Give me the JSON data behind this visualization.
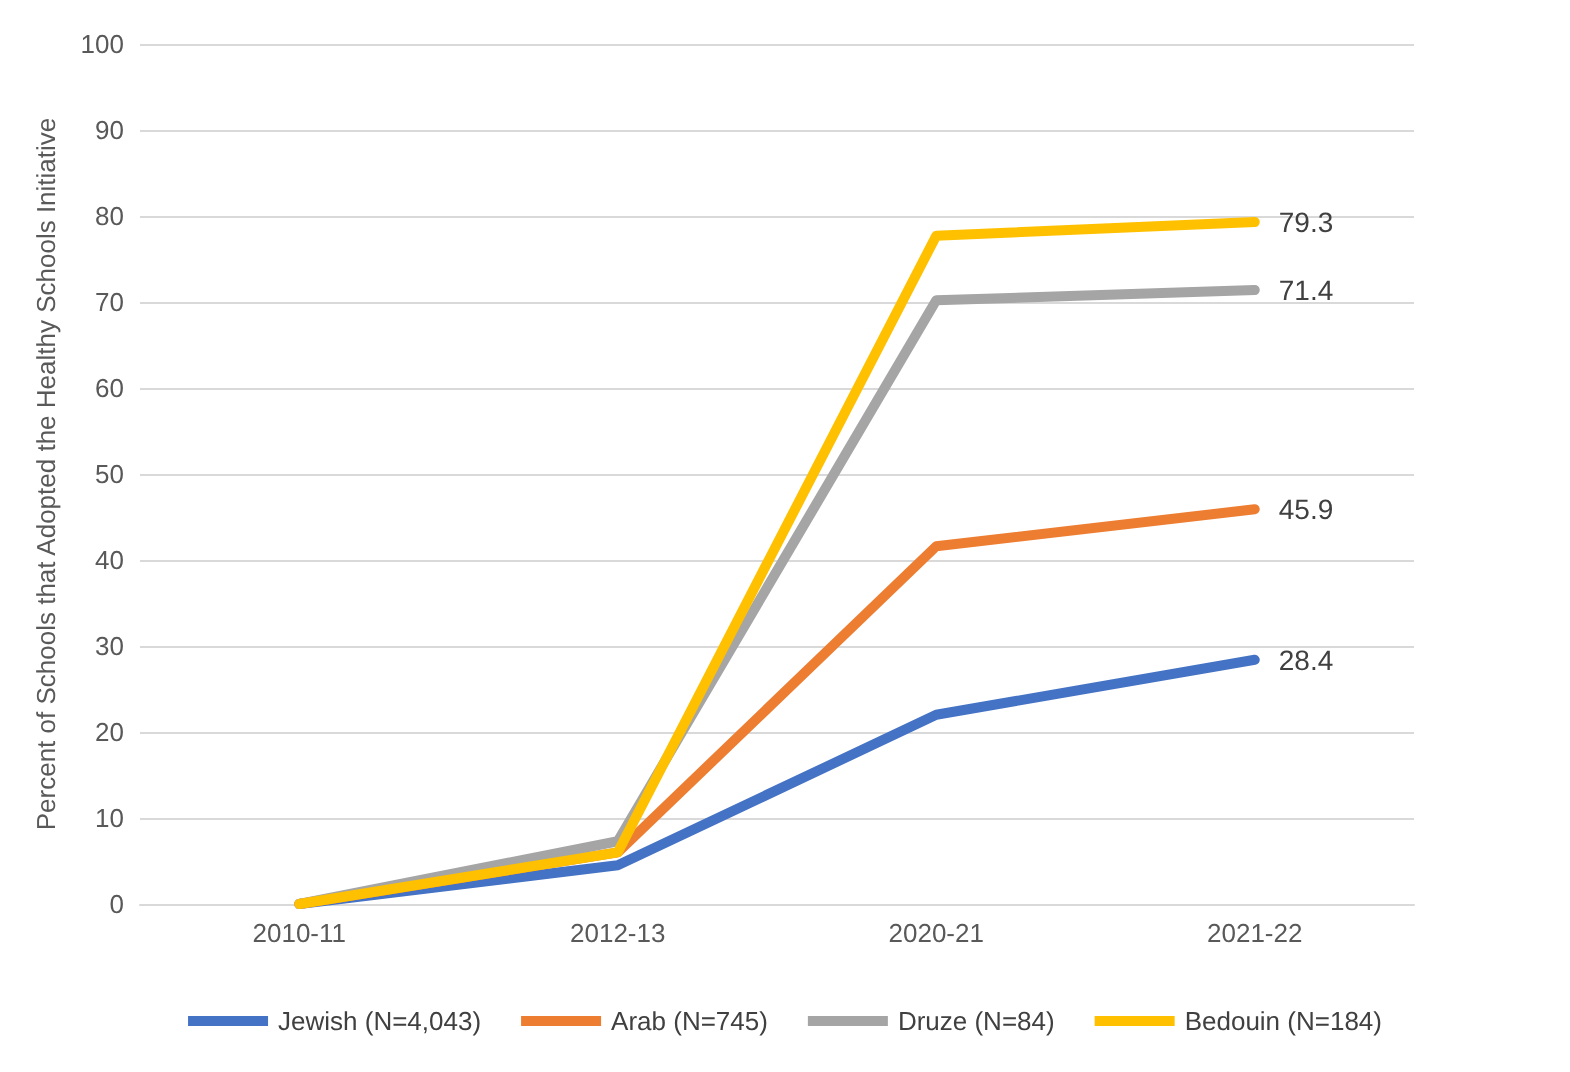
{
  "chart_data": {
    "type": "line",
    "ylabel": "Percent of Schools that Adopted the Healthy Schools Initiative",
    "categories": [
      "2010-11",
      "2012-13",
      "2020-21",
      "2021-22"
    ],
    "series": [
      {
        "name": "Jewish (N=4,043)",
        "color": "#4472c4",
        "values": [
          0,
          4.5,
          22,
          28.4
        ],
        "value_labels": [
          null,
          null,
          null,
          "28.4"
        ]
      },
      {
        "name": "Arab (N=745)",
        "color": "#ed7d31",
        "values": [
          0,
          6,
          41.6,
          45.9
        ],
        "value_labels": [
          null,
          null,
          null,
          "45.9"
        ]
      },
      {
        "name": "Druze (N=84)",
        "color": "#a5a5a5",
        "values": [
          0,
          7.3,
          70.2,
          71.4
        ],
        "value_labels": [
          null,
          null,
          null,
          "71.4"
        ]
      },
      {
        "name": "Bedouin (N=184)",
        "color": "#ffc000",
        "values": [
          0,
          6,
          77.7,
          79.3
        ],
        "value_labels": [
          null,
          null,
          null,
          "79.3"
        ]
      }
    ],
    "ylim": [
      0,
      100
    ],
    "yticks": [
      0,
      10,
      20,
      30,
      40,
      50,
      60,
      70,
      80,
      90,
      100
    ],
    "grid": "y",
    "legend": "bottom",
    "marker": "none",
    "line_style": "solid"
  }
}
